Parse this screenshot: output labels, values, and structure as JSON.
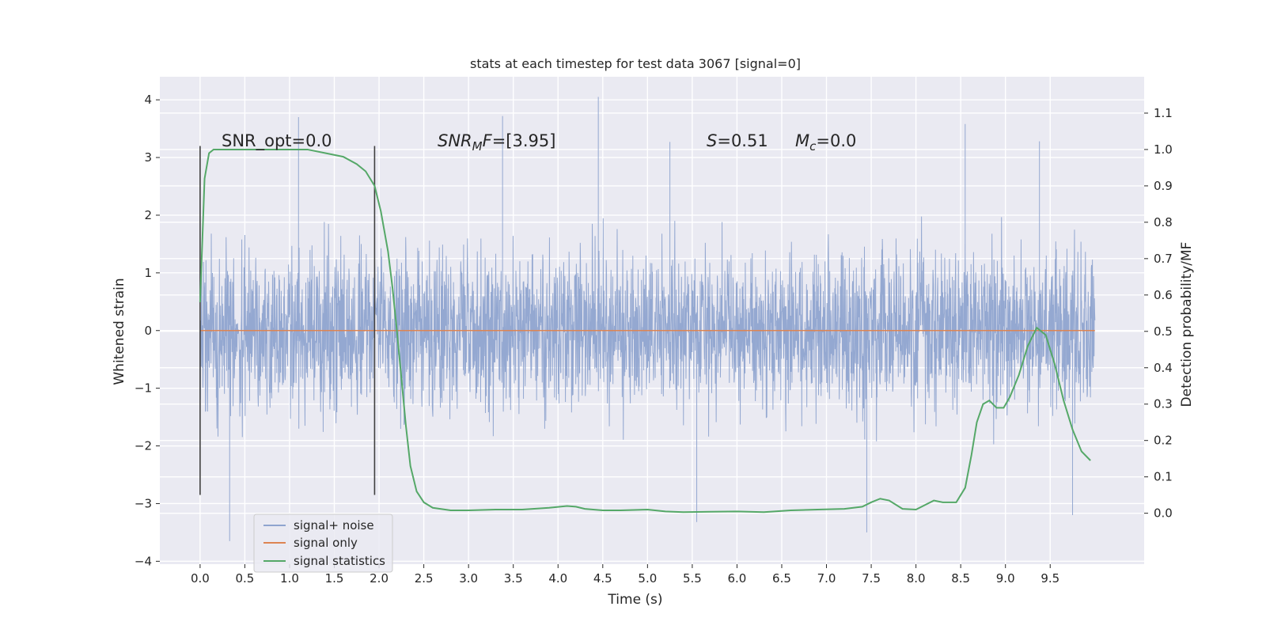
{
  "chart_data": {
    "type": "line",
    "title": "stats at each timestep for test data 3067 [signal=0]",
    "xlabel": "Time (s)",
    "ylabel": "Whitened strain",
    "y2label": "Detection probability/MF",
    "xlim": [
      -0.45,
      10.55
    ],
    "ylim": [
      -4.05,
      4.4
    ],
    "y2lim": [
      -0.14,
      1.2
    ],
    "x_ticks": [
      0.0,
      0.5,
      1.0,
      1.5,
      2.0,
      2.5,
      3.0,
      3.5,
      4.0,
      4.5,
      5.0,
      5.5,
      6.0,
      6.5,
      7.0,
      7.5,
      8.0,
      8.5,
      9.0,
      9.5
    ],
    "x_tick_labels": [
      "0.0",
      "0.5",
      "1.0",
      "1.5",
      "2.0",
      "2.5",
      "3.0",
      "3.5",
      "4.0",
      "4.5",
      "5.0",
      "5.5",
      "6.0",
      "6.5",
      "7.0",
      "7.5",
      "8.0",
      "8.5",
      "9.0",
      "9.5"
    ],
    "y_ticks": [
      4,
      3,
      2,
      1,
      0,
      -1,
      -2,
      -3,
      -4
    ],
    "y_tick_labels": [
      "4",
      "3",
      "2",
      "1",
      "0",
      "−1",
      "−2",
      "−3",
      "−4"
    ],
    "y2_ticks": [
      1.1,
      1.0,
      0.9,
      0.8,
      0.7,
      0.6,
      0.5,
      0.4,
      0.3,
      0.2,
      0.1,
      0.0
    ],
    "y2_tick_labels": [
      "1.1",
      "1.0",
      "0.9",
      "0.8",
      "0.7",
      "0.6",
      "0.5",
      "0.4",
      "0.3",
      "0.2",
      "0.1",
      "0.0"
    ],
    "grid": true,
    "legend_position": "lower-left",
    "series": [
      {
        "name": "signal+ noise",
        "axis": "left",
        "color": "#8fa4cf",
        "description_values": "dense noise, mostly between -2.5 and 2.5, extreme peaks about 4.05 (t≈4.45) and -3.65 (t≈0.33)",
        "x_start": 0.0,
        "x_end": 10.0,
        "typical_range": [
          -2.6,
          2.6
        ],
        "peaks": [
          {
            "x": 4.45,
            "y": 4.05
          },
          {
            "x": 1.1,
            "y": 3.7
          },
          {
            "x": 3.38,
            "y": 3.72
          },
          {
            "x": 8.55,
            "y": 3.58
          },
          {
            "x": 5.25,
            "y": 3.27
          },
          {
            "x": 9.38,
            "y": 3.28
          },
          {
            "x": 0.33,
            "y": -3.65
          },
          {
            "x": 7.45,
            "y": -3.5
          },
          {
            "x": 5.55,
            "y": -3.32
          },
          {
            "x": 9.75,
            "y": -3.2
          }
        ]
      },
      {
        "name": "signal only",
        "axis": "left",
        "color": "#dd8452",
        "x": [
          0.0,
          10.0
        ],
        "y": [
          0.0,
          0.0
        ]
      },
      {
        "name": "signal statistics",
        "axis": "right",
        "color": "#55a868",
        "x": [
          0.0,
          0.05,
          0.1,
          0.15,
          0.25,
          0.4,
          0.6,
          0.8,
          1.0,
          1.2,
          1.4,
          1.6,
          1.75,
          1.85,
          1.95,
          2.02,
          2.1,
          2.15,
          2.2,
          2.25,
          2.3,
          2.35,
          2.42,
          2.5,
          2.6,
          2.8,
          3.0,
          3.3,
          3.6,
          3.9,
          4.1,
          4.2,
          4.3,
          4.5,
          4.7,
          5.0,
          5.2,
          5.4,
          5.7,
          6.0,
          6.3,
          6.6,
          6.9,
          7.2,
          7.4,
          7.5,
          7.6,
          7.7,
          7.85,
          8.0,
          8.2,
          8.3,
          8.45,
          8.55,
          8.62,
          8.68,
          8.75,
          8.82,
          8.9,
          8.98,
          9.05,
          9.15,
          9.25,
          9.35,
          9.45,
          9.55,
          9.65,
          9.75,
          9.85,
          9.95
        ],
        "y": [
          0.58,
          0.92,
          0.99,
          1.0,
          1.0,
          1.0,
          1.0,
          1.0,
          1.0,
          1.0,
          0.99,
          0.98,
          0.96,
          0.94,
          0.9,
          0.83,
          0.72,
          0.62,
          0.5,
          0.37,
          0.24,
          0.13,
          0.06,
          0.03,
          0.015,
          0.008,
          0.008,
          0.01,
          0.01,
          0.015,
          0.02,
          0.018,
          0.012,
          0.008,
          0.008,
          0.01,
          0.005,
          0.003,
          0.004,
          0.005,
          0.003,
          0.008,
          0.01,
          0.012,
          0.018,
          0.03,
          0.04,
          0.035,
          0.012,
          0.01,
          0.035,
          0.03,
          0.03,
          0.07,
          0.16,
          0.25,
          0.3,
          0.31,
          0.29,
          0.29,
          0.32,
          0.38,
          0.46,
          0.51,
          0.49,
          0.41,
          0.31,
          0.23,
          0.17,
          0.145
        ]
      }
    ],
    "vertical_markers": [
      {
        "x": 0.0,
        "y_range": [
          -2.85,
          3.2
        ],
        "color": "#404040"
      },
      {
        "x": 1.95,
        "y_range": [
          -2.85,
          3.2
        ],
        "color": "#404040"
      }
    ],
    "annotations": [
      {
        "id": "snr-opt",
        "text": "SNR_opt=0.0"
      },
      {
        "id": "snr-mf",
        "math_main": "SNR",
        "math_sub": "M",
        "math_tail": "F",
        "value_text": "=[3.95]"
      },
      {
        "id": "s-stat",
        "math_main": "S",
        "value_text": "=0.51"
      },
      {
        "id": "mc-stat",
        "math_main": "M",
        "math_sub": "c",
        "value_text": "=0.0"
      }
    ],
    "legend": [
      {
        "label": "signal+ noise",
        "color": "#8fa4cf"
      },
      {
        "label": "signal only",
        "color": "#dd8452"
      },
      {
        "label": "signal statistics",
        "color": "#55a868"
      }
    ],
    "colors": {
      "plot_background": "#eaeaf2",
      "grid": "#ffffff",
      "text": "#262626"
    }
  }
}
